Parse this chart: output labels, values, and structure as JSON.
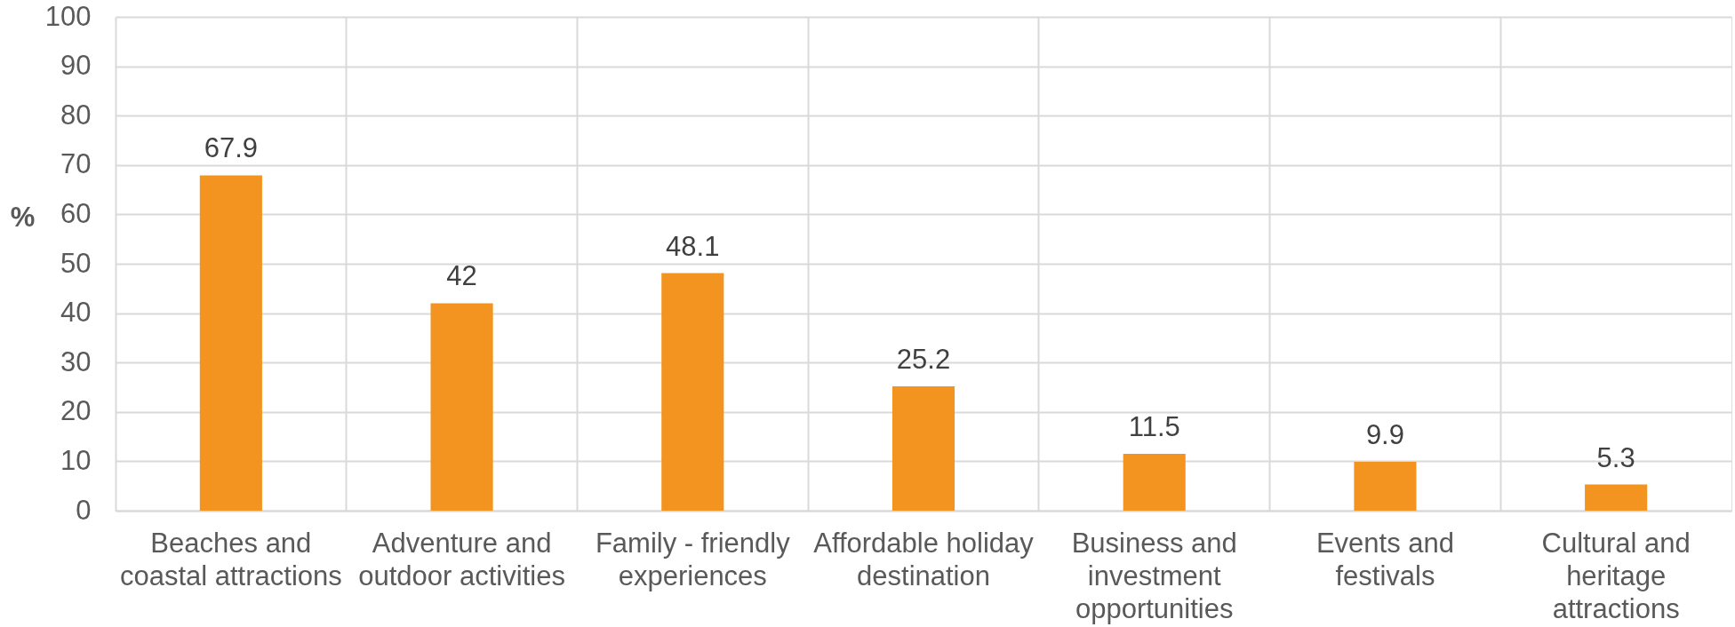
{
  "chart_data": {
    "type": "bar",
    "ylabel": "%",
    "categories": [
      "Beaches and coastal attractions",
      "Adventure and outdoor activities",
      "Family - friendly experiences",
      "Affordable holiday destination",
      "Business and investment opportunities",
      "Events and festivals",
      "Cultural and heritage attractions"
    ],
    "values": [
      67.9,
      42,
      48.1,
      25.2,
      11.5,
      9.9,
      5.3
    ],
    "color": "#f39320",
    "ylim": [
      0,
      100
    ],
    "yticks": [
      0,
      10,
      20,
      30,
      40,
      50,
      60,
      70,
      80,
      90,
      100
    ],
    "grid": true,
    "data_labels": true
  }
}
